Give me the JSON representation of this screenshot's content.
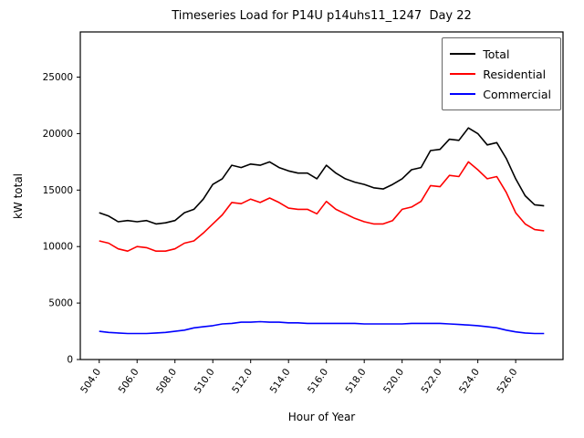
{
  "chart_data": {
    "type": "line",
    "title": "Timeseries Load for P14U p14uhs11_1247  Day 22",
    "xlabel": "Hour of Year",
    "ylabel": "kW total",
    "xlim": [
      503.0,
      528.5
    ],
    "ylim": [
      0,
      29000
    ],
    "xticks": [
      "504.0",
      "506.0",
      "508.0",
      "510.0",
      "512.0",
      "514.0",
      "516.0",
      "518.0",
      "520.0",
      "522.0",
      "524.0",
      "526.0"
    ],
    "yticks": [
      "0",
      "5000",
      "10000",
      "15000",
      "20000",
      "25000"
    ],
    "grid": false,
    "legend_position": "upper right",
    "x": [
      504.0,
      504.5,
      505.0,
      505.5,
      506.0,
      506.5,
      507.0,
      507.5,
      508.0,
      508.5,
      509.0,
      509.5,
      510.0,
      510.5,
      511.0,
      511.5,
      512.0,
      512.5,
      513.0,
      513.5,
      514.0,
      514.5,
      515.0,
      515.5,
      516.0,
      516.5,
      517.0,
      517.5,
      518.0,
      518.5,
      519.0,
      519.5,
      520.0,
      520.5,
      521.0,
      521.5,
      522.0,
      522.5,
      523.0,
      523.5,
      524.0,
      524.5,
      525.0,
      525.5,
      526.0,
      526.5,
      527.0,
      527.5
    ],
    "series": [
      {
        "name": "Total",
        "color": "#000000",
        "values": [
          13000,
          12700,
          12200,
          12300,
          12200,
          12300,
          12000,
          12100,
          12300,
          13000,
          13300,
          14200,
          15500,
          16000,
          17200,
          17000,
          17300,
          17200,
          17500,
          17000,
          16700,
          16500,
          16500,
          16000,
          17200,
          16500,
          16000,
          15700,
          15500,
          15200,
          15100,
          15500,
          16000,
          16800,
          17000,
          18500,
          18600,
          19500,
          19400,
          20500,
          20000,
          19000,
          19200,
          17800,
          16000,
          14500,
          13700,
          13600
        ]
      },
      {
        "name": "Residential",
        "color": "#ff0000",
        "values": [
          10500,
          10300,
          9800,
          9600,
          10000,
          9900,
          9600,
          9600,
          9800,
          10300,
          10500,
          11200,
          12000,
          12800,
          13900,
          13800,
          14200,
          13900,
          14300,
          13900,
          13400,
          13300,
          13300,
          12900,
          14000,
          13300,
          12900,
          12500,
          12200,
          12000,
          12000,
          12300,
          13300,
          13500,
          14000,
          15400,
          15300,
          16300,
          16200,
          17500,
          16800,
          16000,
          16200,
          14800,
          13000,
          12000,
          11500,
          11400
        ]
      },
      {
        "name": "Commercial",
        "color": "#0000ff",
        "values": [
          2500,
          2400,
          2350,
          2300,
          2300,
          2300,
          2350,
          2400,
          2500,
          2600,
          2800,
          2900,
          3000,
          3150,
          3200,
          3300,
          3300,
          3350,
          3300,
          3300,
          3250,
          3250,
          3200,
          3200,
          3200,
          3200,
          3200,
          3200,
          3150,
          3150,
          3150,
          3150,
          3150,
          3200,
          3200,
          3200,
          3200,
          3150,
          3100,
          3050,
          3000,
          2900,
          2800,
          2600,
          2450,
          2350,
          2300,
          2300
        ]
      }
    ]
  }
}
